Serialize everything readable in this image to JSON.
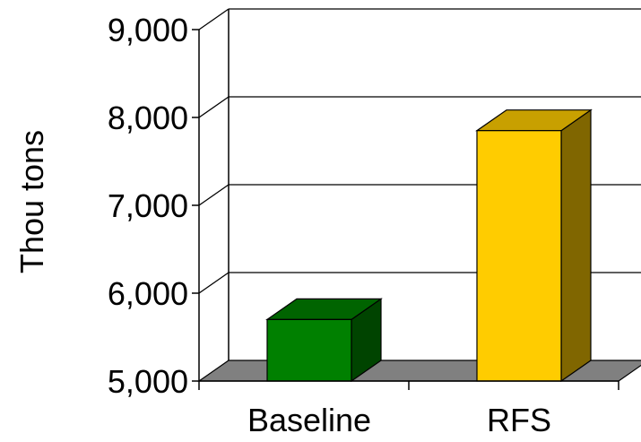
{
  "chart_data": {
    "type": "bar",
    "style": "3d",
    "categories": [
      "Baseline",
      "RFS"
    ],
    "values": [
      5700,
      7850
    ],
    "ylabel": "Thou tons",
    "xlabel": "",
    "ylim": [
      5000,
      9000
    ],
    "yticks": [
      5000,
      6000,
      7000,
      8000,
      9000
    ],
    "ytick_labels": [
      "5,000",
      "6,000",
      "7,000",
      "8,000",
      "9,000"
    ],
    "grid": true,
    "bar_colors": {
      "Baseline": {
        "front": "#008000",
        "top": "#006400",
        "side": "#004400"
      },
      "RFS": {
        "front": "#FFCC00",
        "top": "#C8A000",
        "side": "#806600"
      }
    },
    "floor_color": "#808080"
  }
}
